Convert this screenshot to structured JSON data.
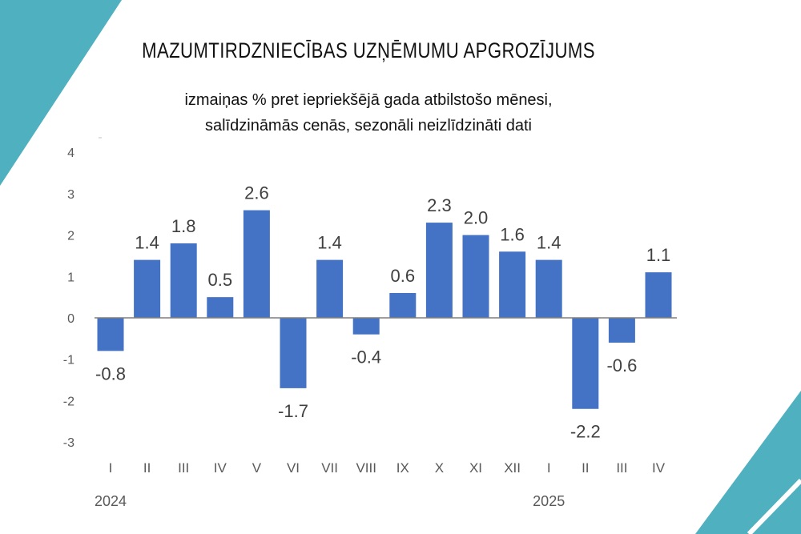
{
  "colors": {
    "bar": "#4472C4",
    "axis": "#7f7f7f",
    "tick_text": "#595959",
    "label_text": "#404040",
    "decoration": "#4fb0bf"
  },
  "chart_data": {
    "type": "bar",
    "title": "MAZUMTIRDZNIECĪBAS UZŅĒMUMU APGROZĪJUMS",
    "subtitle_lines": [
      "izmaiņas % pret iepriekšējā gada atbilstošo mēnesi,",
      "salīdzināmās cenās, sezonāli neizlīdzināti dati"
    ],
    "categories": [
      "I",
      "II",
      "III",
      "IV",
      "V",
      "VI",
      "VII",
      "VIII",
      "IX",
      "X",
      "XI",
      "XII",
      "I",
      "II",
      "III",
      "IV"
    ],
    "year_labels": [
      {
        "label": "2024",
        "at_index": 0
      },
      {
        "label": "2025",
        "at_index": 12
      }
    ],
    "values": [
      -0.8,
      1.4,
      1.8,
      0.5,
      2.6,
      -1.7,
      1.4,
      -0.4,
      0.6,
      2.3,
      2.0,
      1.6,
      1.4,
      -2.2,
      -0.6,
      1.1
    ],
    "data_labels": [
      "-0.8",
      "1.4",
      "1.8",
      "0.5",
      "2.6",
      "-1.7",
      "1.4",
      "-0.4",
      "0.6",
      "2.3",
      "2.0",
      "1.6",
      "1.4",
      "-2.2",
      "-0.6",
      "1.1"
    ],
    "yticks": [
      "4",
      "3",
      "2",
      "1",
      "0",
      "-1",
      "-2",
      "-3"
    ],
    "ylim": [
      -3,
      4
    ],
    "grid": false,
    "legend": "none"
  }
}
